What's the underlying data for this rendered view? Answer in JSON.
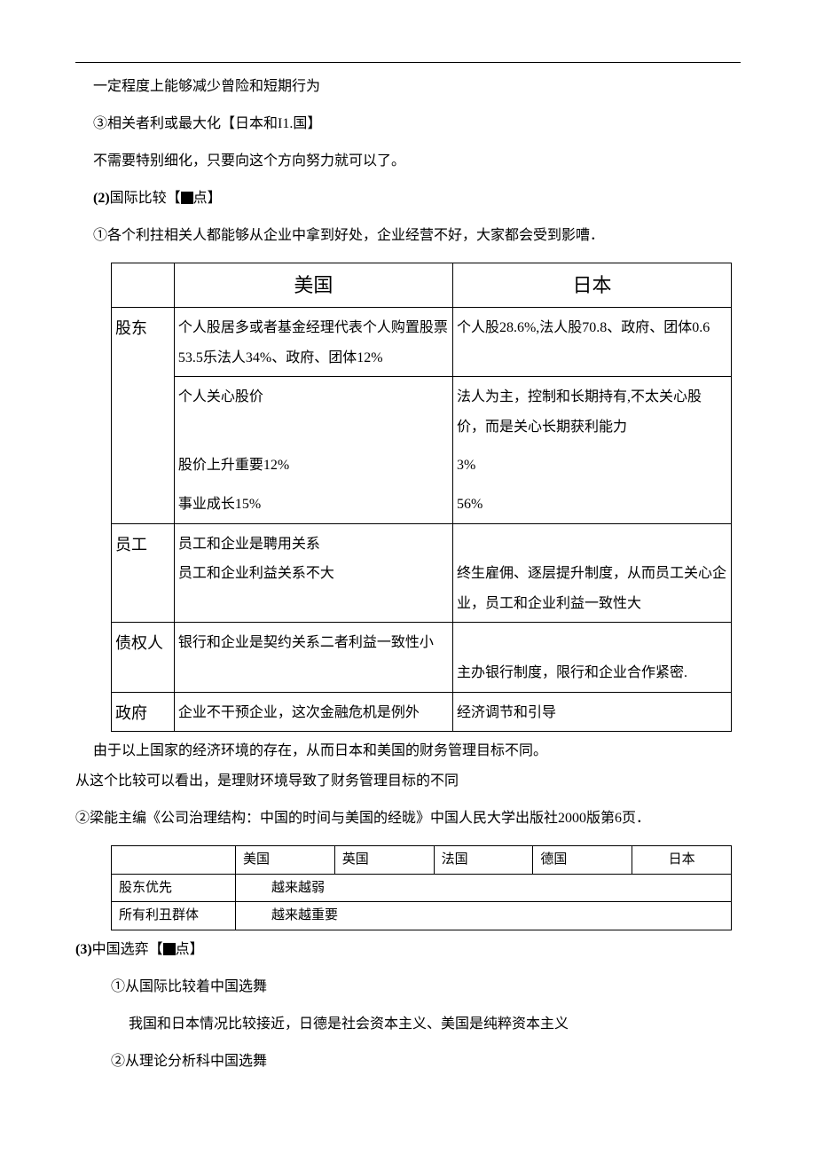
{
  "lines": {
    "l1": "一定程度上能够减少曾险和短期行为",
    "l2": "③相关者利或最大化【日本和I1.国】",
    "l3": "不需要特别细化，只要向这个方向努力就可以了。",
    "l4_prefix": "(2)",
    "l4_a": "国际比较【",
    "l4_b": "点】",
    "l5": "①各个利拄相关人都能够从企业中拿到好处，企业经营不好，大家都会受到影嘈．",
    "after_t1_a": "由于以上国家的经济环境的存在，从而日本和美国的财务管理目标不同。",
    "after_t1_b": "从这个比较可以看出，是理财环境导致了财务管理目标的不同",
    "after_t1_c": "②梁能主编《公司治理结构：中国的时间与美国的经昽》中国人民大学出版社2000版第6页．",
    "l6_prefix": "(3)",
    "l6_a": "中国选弈【",
    "l6_b": "点】",
    "l7": "①从国际比较着中国选舞",
    "l8": "我国和日本情况比较接近，日德是社会资本主义、美国是纯粹资本主义",
    "l9": "②从理论分析科中国选舞"
  },
  "table1": {
    "headers": {
      "c1": "",
      "c2": "美国",
      "c3": "日本"
    },
    "rows": [
      {
        "label": "股东",
        "us_parts": [
          "个人股居多或者基金经理代表个人购置股票53.5乐法人34%、政府、团体12%",
          "个人关心股价",
          "股价上升重要12%",
          "事业成长15%"
        ],
        "jp_parts": [
          "个人股28.6%,法人股70.8、政府、团体0.6",
          "法人为主，控制和长期持有,不太关心股价，而是关心长期获利能力",
          "3%",
          "56%"
        ]
      },
      {
        "label": "员工",
        "us": "员工和企业是聘用关系\n员工和企业利益关系不大",
        "jp": "\n终生雇佣、逐层提升制度，从而员工关心企业，员工和企业利益一致性大"
      },
      {
        "label": "债权人",
        "us": "银行和企业是契约关系二者利益一致性小",
        "jp": "\n主办银行制度，限行和企业合作紧密."
      },
      {
        "label": "政府",
        "us": "企业不干预企业，这次金融危机是例外",
        "jp": "经济调节和引导"
      }
    ]
  },
  "table2": {
    "headers": [
      "",
      "美国",
      "英国",
      "法国",
      "德国",
      "日本"
    ],
    "rows": [
      {
        "label": "股东优先",
        "value": "越来越弱"
      },
      {
        "label": "所有利丑群体",
        "value": "越来越重要"
      }
    ]
  }
}
